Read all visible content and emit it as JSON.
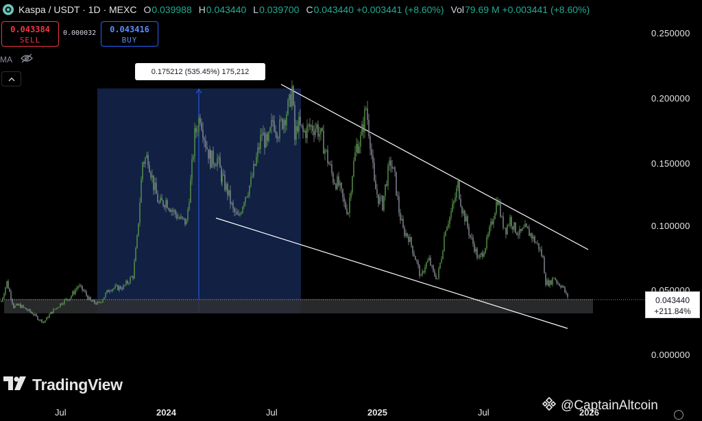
{
  "header": {
    "symbol": "Kaspa / USDT · 1D · MEXC",
    "o_label": "O",
    "o_value": "0.039988",
    "h_label": "H",
    "h_value": "0.043440",
    "l_label": "L",
    "l_value": "0.039700",
    "c_label": "C",
    "c_value": "0.043440 +0.003441 (+8.60%)",
    "vol_label": "Vol",
    "vol_value": "79.69 M +0.003441 (+8.60%)"
  },
  "trade": {
    "sell_price": "0.043384",
    "sell_label": "SELL",
    "spread": "0.000032",
    "buy_price": "0.043416",
    "buy_label": "BUY"
  },
  "indicators": {
    "ma_label": "MA"
  },
  "measure": {
    "label": "0.175212 (535.45%) 175,212"
  },
  "price_axis": {
    "ticks": [
      "0.250000",
      "0.200000",
      "0.150000",
      "0.100000",
      "0.050000",
      "0.000000"
    ]
  },
  "current_price": {
    "price": "0.043440",
    "change": "+211.84%"
  },
  "time_axis": {
    "ticks": [
      {
        "label": "Jul",
        "bold": false
      },
      {
        "label": "2024",
        "bold": true
      },
      {
        "label": "Jul",
        "bold": false
      },
      {
        "label": "2025",
        "bold": true
      },
      {
        "label": "Jul",
        "bold": false
      },
      {
        "label": "2026",
        "bold": true
      }
    ]
  },
  "branding": {
    "tradingview": "TradingView",
    "watermark": "@CaptainAltcoin"
  },
  "colors": {
    "background": "#000000",
    "candle_up": "#5a9a4a",
    "candle_down": "#8a8f99",
    "trendline": "#ffffff",
    "measure_fill": "#13234a",
    "support_zone": "#2f3033",
    "sell": "#f23645",
    "buy": "#2962ff"
  },
  "chart_data": {
    "type": "line",
    "series": [
      {
        "values": [
          [
            0,
            0.04
          ],
          [
            8,
            0.055
          ],
          [
            18,
            0.036
          ],
          [
            26,
            0.037
          ],
          [
            45,
            0.031
          ],
          [
            55,
            0.026
          ],
          [
            62,
            0.024
          ],
          [
            72,
            0.031
          ],
          [
            90,
            0.04
          ],
          [
            100,
            0.043
          ],
          [
            112,
            0.052
          ],
          [
            120,
            0.048
          ],
          [
            130,
            0.04
          ],
          [
            142,
            0.038
          ],
          [
            158,
            0.05
          ],
          [
            178,
            0.051
          ],
          [
            192,
            0.06
          ],
          [
            198,
            0.088
          ],
          [
            206,
            0.148
          ],
          [
            214,
            0.152
          ],
          [
            222,
            0.13
          ],
          [
            230,
            0.115
          ],
          [
            240,
            0.118
          ],
          [
            250,
            0.11
          ],
          [
            262,
            0.103
          ],
          [
            270,
            0.101
          ],
          [
            276,
            0.132
          ],
          [
            282,
            0.168
          ],
          [
            290,
            0.185
          ],
          [
            298,
            0.163
          ],
          [
            305,
            0.15
          ],
          [
            315,
            0.15
          ],
          [
            322,
            0.135
          ],
          [
            330,
            0.125
          ],
          [
            338,
            0.11
          ],
          [
            346,
            0.104
          ],
          [
            354,
            0.12
          ],
          [
            364,
            0.132
          ],
          [
            372,
            0.15
          ],
          [
            380,
            0.17
          ],
          [
            388,
            0.16
          ],
          [
            396,
            0.18
          ],
          [
            404,
            0.172
          ],
          [
            412,
            0.182
          ],
          [
            420,
            0.192
          ],
          [
            424,
            0.205
          ],
          [
            428,
            0.165
          ],
          [
            432,
            0.178
          ],
          [
            440,
            0.17
          ],
          [
            450,
            0.175
          ],
          [
            460,
            0.175
          ],
          [
            468,
            0.165
          ],
          [
            476,
            0.15
          ],
          [
            484,
            0.135
          ],
          [
            492,
            0.13
          ],
          [
            500,
            0.115
          ],
          [
            506,
            0.11
          ],
          [
            512,
            0.14
          ],
          [
            518,
            0.16
          ],
          [
            524,
            0.165
          ],
          [
            532,
            0.19
          ],
          [
            538,
            0.165
          ],
          [
            544,
            0.13
          ],
          [
            550,
            0.12
          ],
          [
            556,
            0.115
          ],
          [
            562,
            0.135
          ],
          [
            568,
            0.148
          ],
          [
            574,
            0.135
          ],
          [
            580,
            0.11
          ],
          [
            586,
            0.095
          ],
          [
            594,
            0.09
          ],
          [
            600,
            0.08
          ],
          [
            606,
            0.07
          ],
          [
            612,
            0.058
          ],
          [
            618,
            0.068
          ],
          [
            624,
            0.072
          ],
          [
            630,
            0.062
          ],
          [
            636,
            0.058
          ],
          [
            642,
            0.075
          ],
          [
            648,
            0.098
          ],
          [
            654,
            0.105
          ],
          [
            660,
            0.116
          ],
          [
            666,
            0.13
          ],
          [
            672,
            0.112
          ],
          [
            678,
            0.102
          ],
          [
            684,
            0.09
          ],
          [
            690,
            0.082
          ],
          [
            696,
            0.072
          ],
          [
            702,
            0.078
          ],
          [
            708,
            0.086
          ],
          [
            714,
            0.098
          ],
          [
            720,
            0.112
          ],
          [
            724,
            0.12
          ],
          [
            730,
            0.102
          ],
          [
            736,
            0.096
          ],
          [
            742,
            0.104
          ],
          [
            748,
            0.097
          ],
          [
            756,
            0.092
          ],
          [
            764,
            0.096
          ],
          [
            772,
            0.092
          ],
          [
            778,
            0.087
          ],
          [
            784,
            0.082
          ],
          [
            790,
            0.073
          ],
          [
            794,
            0.055
          ],
          [
            800,
            0.054
          ],
          [
            806,
            0.059
          ],
          [
            812,
            0.054
          ],
          [
            818,
            0.052
          ],
          [
            824,
            0.045
          ],
          [
            828,
            0.043
          ]
        ]
      }
    ]
  }
}
